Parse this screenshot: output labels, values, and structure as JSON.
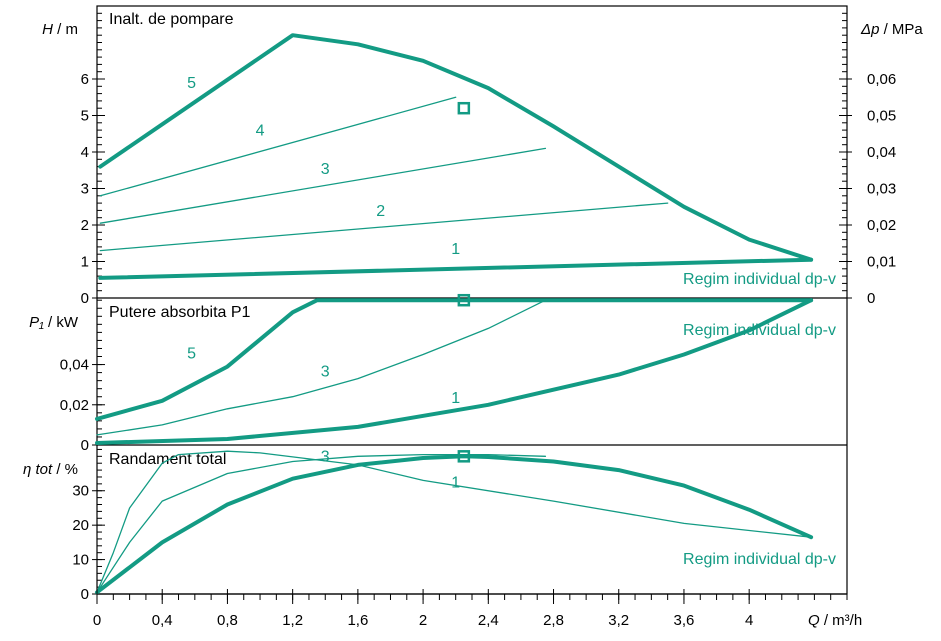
{
  "colors": {
    "accent": "#139b84",
    "axis": "#000000"
  },
  "chart_data": {
    "type": "line",
    "x_axis": {
      "label_symbol": "Q",
      "label_unit": " / m³/h",
      "min": 0,
      "max": 4.6,
      "ticks": [
        0,
        0.4,
        0.8,
        1.2,
        1.6,
        2,
        2.4,
        2.8,
        3.2,
        3.6,
        4
      ],
      "tick_labels": [
        "0",
        "0,4",
        "0,8",
        "1,2",
        "1,6",
        "2",
        "2,4",
        "2,8",
        "3,2",
        "3,6",
        "4"
      ]
    },
    "panels": [
      {
        "id": "head",
        "title": "Inalt. de pompare",
        "y_label_symbol": "H",
        "y_label_unit": " / m",
        "ylim": [
          0,
          8
        ],
        "y_ticks": [
          0,
          1,
          2,
          3,
          4,
          5,
          6
        ],
        "y_tick_labels": [
          "0",
          "1",
          "2",
          "3",
          "4",
          "5",
          "6"
        ],
        "right_axis": {
          "label_symbol": "Δp",
          "label_unit": " / MPa",
          "ylim": [
            0,
            0.08
          ],
          "ticks": [
            0,
            0.01,
            0.02,
            0.03,
            0.04,
            0.05,
            0.06
          ],
          "tick_labels": [
            "0",
            "0,01",
            "0,02",
            "0,03",
            "0,04",
            "0,05",
            "0,06"
          ]
        },
        "note": "Regim individual dp-v",
        "operating_point": {
          "x": 2.25,
          "y": 5.2
        },
        "series": [
          {
            "name": "5",
            "thick": true,
            "points": [
              [
                0.02,
                3.6
              ],
              [
                1.2,
                7.2
              ],
              [
                1.6,
                6.95
              ],
              [
                2.0,
                6.5
              ],
              [
                2.4,
                5.75
              ],
              [
                2.8,
                4.7
              ],
              [
                3.2,
                3.6
              ],
              [
                3.6,
                2.5
              ],
              [
                4.0,
                1.6
              ],
              [
                4.38,
                1.05
              ]
            ]
          },
          {
            "name": "4",
            "thick": false,
            "points": [
              [
                0.02,
                2.8
              ],
              [
                2.2,
                5.5
              ]
            ]
          },
          {
            "name": "3",
            "thick": false,
            "points": [
              [
                0.02,
                2.05
              ],
              [
                2.75,
                4.1
              ]
            ]
          },
          {
            "name": "2",
            "thick": false,
            "points": [
              [
                0.02,
                1.3
              ],
              [
                3.5,
                2.6
              ]
            ]
          },
          {
            "name": "1",
            "thick": true,
            "points": [
              [
                0.02,
                0.55
              ],
              [
                4.38,
                1.05
              ]
            ]
          }
        ],
        "series_labels": [
          {
            "name": "5",
            "x": 0.58,
            "y": 5.75
          },
          {
            "name": "4",
            "x": 1.0,
            "y": 4.45
          },
          {
            "name": "3",
            "x": 1.4,
            "y": 3.4
          },
          {
            "name": "2",
            "x": 1.74,
            "y": 2.25
          },
          {
            "name": "1",
            "x": 2.2,
            "y": 1.2
          }
        ]
      },
      {
        "id": "power",
        "title": "Putere absorbita P1",
        "y_label_symbol": "P₁",
        "y_label_unit": " / kW",
        "ylim": [
          0,
          0.0726
        ],
        "y_ticks": [
          0,
          0.02,
          0.04
        ],
        "y_tick_labels": [
          "0",
          "0,02",
          "0,04"
        ],
        "note": "Regim individual dp-v",
        "operating_point": {
          "x": 2.25,
          "y": 0.072
        },
        "series": [
          {
            "name": "5",
            "thick": true,
            "points": [
              [
                0.0,
                0.013
              ],
              [
                0.4,
                0.022
              ],
              [
                0.8,
                0.039
              ],
              [
                1.2,
                0.066
              ],
              [
                1.35,
                0.072
              ],
              [
                4.38,
                0.072
              ]
            ]
          },
          {
            "name": "3",
            "thick": false,
            "points": [
              [
                0.0,
                0.005
              ],
              [
                0.4,
                0.01
              ],
              [
                0.8,
                0.018
              ],
              [
                1.2,
                0.024
              ],
              [
                1.6,
                0.033
              ],
              [
                2.0,
                0.045
              ],
              [
                2.4,
                0.058
              ],
              [
                2.75,
                0.072
              ]
            ]
          },
          {
            "name": "1",
            "thick": true,
            "points": [
              [
                0.0,
                0.001
              ],
              [
                0.8,
                0.003
              ],
              [
                1.6,
                0.009
              ],
              [
                2.4,
                0.02
              ],
              [
                3.2,
                0.035
              ],
              [
                3.6,
                0.045
              ],
              [
                4.0,
                0.057
              ],
              [
                4.38,
                0.072
              ]
            ]
          }
        ],
        "series_labels": [
          {
            "name": "5",
            "x": 0.58,
            "y": 0.043
          },
          {
            "name": "3",
            "x": 1.4,
            "y": 0.034
          },
          {
            "name": "1",
            "x": 2.2,
            "y": 0.021
          }
        ]
      },
      {
        "id": "efficiency",
        "title": "Randament total",
        "y_label_symbol": "η tot",
        "y_label_unit": " / %",
        "ylim": [
          0,
          43
        ],
        "y_ticks": [
          0,
          10,
          20,
          30
        ],
        "y_tick_labels": [
          "0",
          "10",
          "20",
          "30"
        ],
        "note": "Regim individual dp-v",
        "operating_point": {
          "x": 2.25,
          "y": 40
        },
        "series": [
          {
            "name": "5",
            "thick": true,
            "points": [
              [
                0.0,
                0.5
              ],
              [
                0.4,
                15
              ],
              [
                0.8,
                26
              ],
              [
                1.2,
                33.5
              ],
              [
                1.6,
                37.5
              ],
              [
                2.0,
                39.5
              ],
              [
                2.25,
                40
              ],
              [
                2.4,
                39.8
              ],
              [
                2.8,
                38.5
              ],
              [
                3.2,
                36
              ],
              [
                3.6,
                31.5
              ],
              [
                4.0,
                24.5
              ],
              [
                4.38,
                16.5
              ]
            ]
          },
          {
            "name": "3",
            "thick": false,
            "points": [
              [
                0.0,
                0.5
              ],
              [
                0.2,
                15
              ],
              [
                0.4,
                27
              ],
              [
                0.8,
                35
              ],
              [
                1.2,
                38.5
              ],
              [
                1.6,
                40
              ],
              [
                2.0,
                40.5
              ],
              [
                2.4,
                40.5
              ],
              [
                2.75,
                40
              ]
            ]
          },
          {
            "name": "1",
            "thick": false,
            "points": [
              [
                0.0,
                0.5
              ],
              [
                0.1,
                12
              ],
              [
                0.2,
                25
              ],
              [
                0.4,
                38
              ],
              [
                0.5,
                40.5
              ],
              [
                0.8,
                41.5
              ],
              [
                1.0,
                41
              ],
              [
                1.6,
                37.5
              ],
              [
                2.0,
                33
              ],
              [
                2.8,
                27
              ],
              [
                3.6,
                20.5
              ],
              [
                4.38,
                16.5
              ]
            ]
          }
        ],
        "series_labels": [
          {
            "name": "3",
            "x": 1.4,
            "y": 38.5
          },
          {
            "name": "1",
            "x": 2.2,
            "y": 31
          }
        ]
      }
    ]
  }
}
